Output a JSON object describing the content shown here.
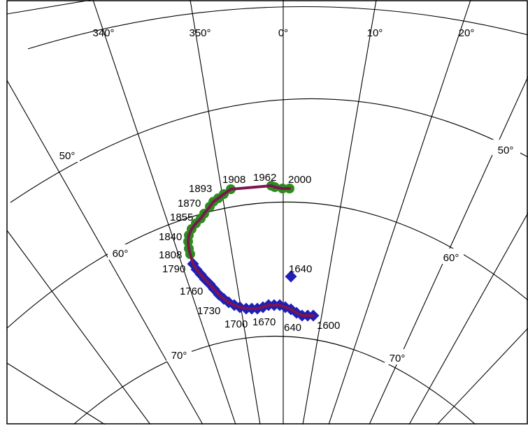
{
  "colors": {
    "grid": "#000000",
    "path": "#7a1650",
    "recent_marker": "#2e8b1e",
    "early_marker": "#1f1fb8"
  },
  "longitude_labels": [
    "340°",
    "350°",
    "0°",
    "10°",
    "20°"
  ],
  "latitude_labels": [
    "50°",
    "50°",
    "60°",
    "60°",
    "70°",
    "70°"
  ],
  "recent_points": [
    {
      "year": "2000"
    },
    {
      "year": "1962"
    },
    {
      "year": "1908"
    },
    {
      "year": "1893"
    },
    {
      "year": "1870"
    },
    {
      "year": "1855"
    },
    {
      "year": "1840"
    },
    {
      "year": "1808"
    }
  ],
  "early_points": [
    {
      "year": "1790"
    },
    {
      "year": "1760"
    },
    {
      "year": "1730"
    },
    {
      "year": "1700"
    },
    {
      "year": "1670"
    },
    {
      "year": "640"
    },
    {
      "year": "1600"
    }
  ],
  "outlier_point": {
    "year": "1640"
  }
}
